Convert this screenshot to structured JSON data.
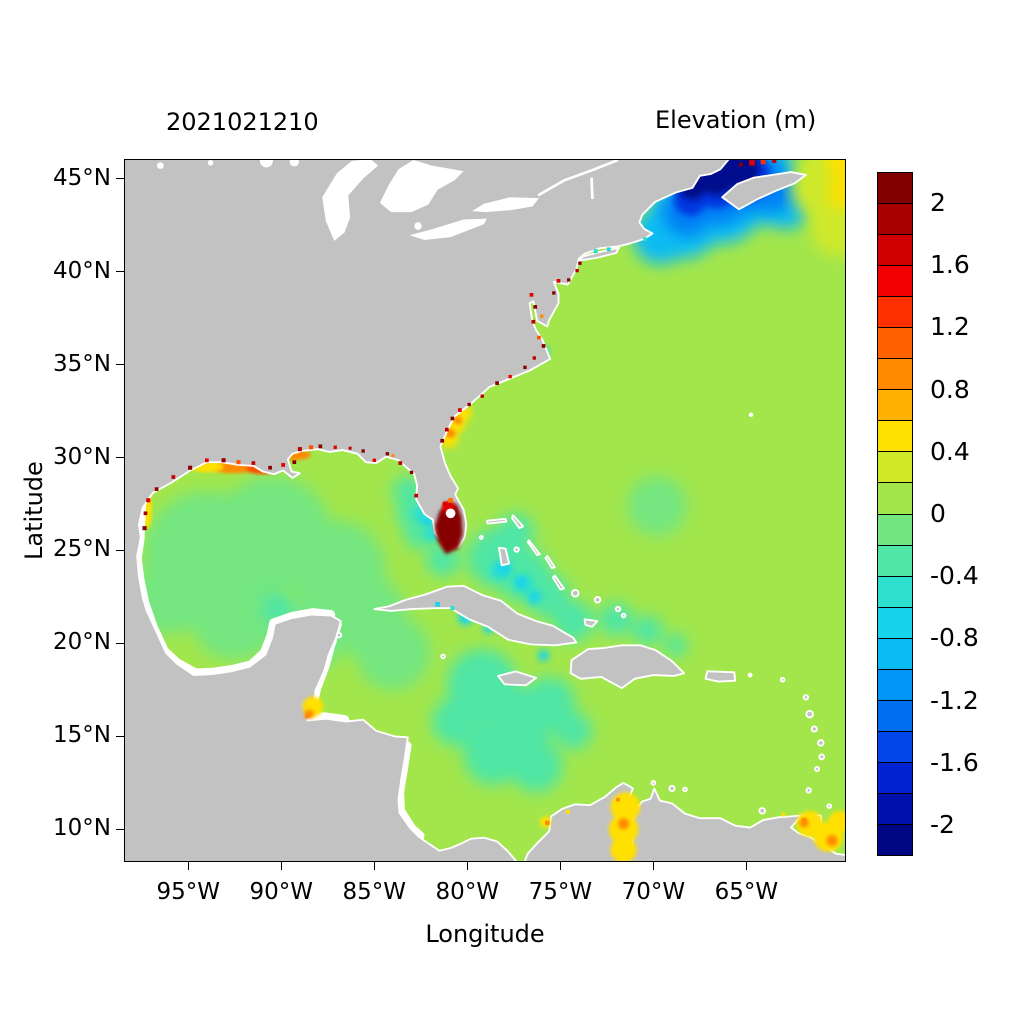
{
  "figure": {
    "timestamp_title": "2021021210",
    "colorbar_title": "Elevation (m)"
  },
  "axes": {
    "x": {
      "label": "Longitude",
      "min": -98.4,
      "max": -59.7,
      "ticks": [
        {
          "value": -95,
          "label": "95°W"
        },
        {
          "value": -90,
          "label": "90°W"
        },
        {
          "value": -85,
          "label": "85°W"
        },
        {
          "value": -80,
          "label": "80°W"
        },
        {
          "value": -75,
          "label": "75°W"
        },
        {
          "value": -70,
          "label": "70°W"
        },
        {
          "value": -65,
          "label": "65°W"
        }
      ]
    },
    "y": {
      "label": "Latitude",
      "min": 8.3,
      "max": 46,
      "ticks": [
        {
          "value": 45,
          "label": "45°N"
        },
        {
          "value": 40,
          "label": "40°N"
        },
        {
          "value": 35,
          "label": "35°N"
        },
        {
          "value": 30,
          "label": "30°N"
        },
        {
          "value": 25,
          "label": "25°N"
        },
        {
          "value": 20,
          "label": "20°N"
        },
        {
          "value": 15,
          "label": "15°N"
        },
        {
          "value": 10,
          "label": "10°N"
        }
      ]
    }
  },
  "colorbar": {
    "min": -2.2,
    "max": 2.2,
    "step": 0.2,
    "tick_values": [
      2,
      1.6,
      1.2,
      0.8,
      0.4,
      0,
      -0.4,
      -0.8,
      -1.2,
      -1.6,
      -2
    ],
    "tick_labels": [
      "2",
      "1.6",
      "1.2",
      "0.8",
      "0.4",
      "0",
      "-0.4",
      "-0.8",
      "-1.2",
      "-1.6",
      "-2"
    ],
    "colors_top_to_bottom": [
      "#800000",
      "#A80000",
      "#D00000",
      "#F00000",
      "#FF3000",
      "#FF6000",
      "#FF8A00",
      "#FFB000",
      "#FFE000",
      "#CFE929",
      "#A2E64C",
      "#74E680",
      "#4FE6A6",
      "#2EDFCE",
      "#17D4EC",
      "#0ABCF2",
      "#0096F5",
      "#006EF0",
      "#0046E8",
      "#0022D0",
      "#0010AC",
      "#000782"
    ]
  },
  "palette": {
    "background": "#FFFFFF",
    "axis": "#000000",
    "land": "#C2C2C2",
    "lake": "#FFFFFF",
    "ocean_base": "#A2E64C",
    "gulf_green": "#74E680",
    "seafoam": "#4FE6A6",
    "turquoise": "#2EDFCE",
    "cyan": "#17D4EC",
    "blue_outer": "#0ABCF2",
    "blue_mid": "#0080F5",
    "blue_deep": "#0038E0",
    "blue_core": "#000A8C",
    "yellow": "#FFE000",
    "yellow_green": "#CFE929",
    "orange": "#FF8A00",
    "orange_red": "#FF5000",
    "red": "#E00000",
    "dark_red": "#870000"
  },
  "map_features": {
    "speckles": [
      [
        -97.35,
        26.2,
        "#8B0000",
        0.22
      ],
      [
        -97.3,
        27.0,
        "#A80000",
        0.2
      ],
      [
        -97.15,
        27.7,
        "#E00000",
        0.22
      ],
      [
        -96.7,
        28.3,
        "#8B0000",
        0.2
      ],
      [
        -95.8,
        28.95,
        "#C00000",
        0.2
      ],
      [
        -94.9,
        29.45,
        "#8B0000",
        0.22
      ],
      [
        -94.0,
        29.85,
        "#E00000",
        0.2
      ],
      [
        -93.1,
        29.85,
        "#8B0000",
        0.22
      ],
      [
        -92.3,
        29.75,
        "#FF5000",
        0.22
      ],
      [
        -91.5,
        29.7,
        "#C00000",
        0.2
      ],
      [
        -90.6,
        29.45,
        "#8B0000",
        0.2
      ],
      [
        -89.9,
        29.6,
        "#E00000",
        0.2
      ],
      [
        -89.3,
        29.75,
        "#8B0000",
        0.2
      ],
      [
        -89.0,
        30.45,
        "#C00000",
        0.22
      ],
      [
        -88.4,
        30.55,
        "#FF5000",
        0.22
      ],
      [
        -87.9,
        30.6,
        "#8B0000",
        0.2
      ],
      [
        -87.1,
        30.55,
        "#E00000",
        0.18
      ],
      [
        -86.3,
        30.5,
        "#C00000",
        0.16
      ],
      [
        -85.6,
        30.35,
        "#8B0000",
        0.18
      ],
      [
        -85.0,
        29.85,
        "#E00000",
        0.18
      ],
      [
        -84.3,
        30.2,
        "#8B0000",
        0.18
      ],
      [
        -84.0,
        30.1,
        "#FF8A00",
        0.16
      ],
      [
        -83.6,
        29.7,
        "#C00000",
        0.2
      ],
      [
        -83.0,
        29.2,
        "#8B0000",
        0.18
      ],
      [
        -82.75,
        27.95,
        "#C00000",
        0.2
      ],
      [
        -81.35,
        30.9,
        "#8B0000",
        0.2
      ],
      [
        -81.1,
        31.5,
        "#C00000",
        0.2
      ],
      [
        -80.8,
        32.1,
        "#8B0000",
        0.2
      ],
      [
        -80.4,
        32.55,
        "#E00000",
        0.2
      ],
      [
        -79.9,
        32.85,
        "#8B0000",
        0.18
      ],
      [
        -79.2,
        33.3,
        "#C00000",
        0.18
      ],
      [
        -78.4,
        34.0,
        "#8B0000",
        0.2
      ],
      [
        -77.7,
        34.35,
        "#E00000",
        0.18
      ],
      [
        -76.9,
        34.85,
        "#8B0000",
        0.18
      ],
      [
        -76.4,
        35.35,
        "#C00000",
        0.18
      ],
      [
        -75.9,
        36.0,
        "#8B0000",
        0.2
      ],
      [
        -76.15,
        36.45,
        "#FF5000",
        0.2
      ],
      [
        -76.45,
        37.3,
        "#C00000",
        0.2
      ],
      [
        -76.35,
        38.1,
        "#8B0000",
        0.2
      ],
      [
        -76.55,
        38.75,
        "#E00000",
        0.2
      ],
      [
        -76.0,
        37.6,
        "#FF8A00",
        0.18
      ],
      [
        -75.35,
        38.85,
        "#8B0000",
        0.18
      ],
      [
        -75.1,
        39.5,
        "#E00000",
        0.2
      ],
      [
        -74.55,
        39.55,
        "#8B0000",
        0.18
      ],
      [
        -74.1,
        40.05,
        "#C00000",
        0.18
      ],
      [
        -73.95,
        40.45,
        "#8B0000",
        0.18
      ],
      [
        -73.1,
        41.1,
        "#2EDFCE",
        0.22
      ],
      [
        -72.4,
        41.2,
        "#17D4EC",
        0.2
      ],
      [
        -70.45,
        41.75,
        "#2EDFCE",
        0.2
      ],
      [
        -64.7,
        45.85,
        "#E00000",
        0.3
      ],
      [
        -64.1,
        45.9,
        "#FF3000",
        0.26
      ],
      [
        -63.5,
        45.95,
        "#C00000",
        0.22
      ],
      [
        -65.3,
        45.75,
        "#8B0000",
        0.2
      ],
      [
        -75.7,
        10.35,
        "#FF8A00",
        0.24
      ],
      [
        -74.6,
        10.95,
        "#FFE000",
        0.22
      ],
      [
        -71.9,
        11.6,
        "#FF8A00",
        0.2
      ],
      [
        -88.6,
        16.1,
        "#FF8A00",
        0.22
      ],
      [
        -61.9,
        10.5,
        "#FF8A00",
        0.22
      ],
      [
        -63.0,
        10.8,
        "#FFE000",
        0.2
      ],
      [
        -80.9,
        27.7,
        "#FF7000",
        0.25
      ],
      [
        -81.2,
        27.5,
        "#E00000",
        0.25
      ],
      [
        -81.6,
        22.1,
        "#17D4EC",
        0.25
      ],
      [
        -80.8,
        21.9,
        "#2EDFCE",
        0.22
      ]
    ]
  },
  "chart_data": {
    "type": "heatmap",
    "title": "Elevation (m)",
    "timestamp": "2021021210",
    "xlabel": "Longitude",
    "ylabel": "Latitude",
    "xlim": [
      -98.4,
      -59.7
    ],
    "ylim": [
      8.3,
      46
    ],
    "grid": false,
    "colorbar": {
      "label": "Elevation (m)",
      "range": [
        -2.2,
        2.2
      ],
      "tick_interval": 0.4,
      "ticks": [
        2,
        1.6,
        1.2,
        0.8,
        0.4,
        0,
        -0.4,
        -0.8,
        -1.2,
        -1.6,
        -2
      ],
      "position": "right"
    },
    "land_mask_color": "gray",
    "regions": [
      {
        "area": "Open Atlantic, most of Gulf of Mexico and eastern Caribbean",
        "approx_elevation_m": 0.1
      },
      {
        "area": "Gulf of Maine / Bay of Fundy / Scotian Shelf (deep blue minimum, NE corner)",
        "approx_elevation_m": -2.0
      },
      {
        "area": "Southern Florida peninsula and adjacent waters (dark red maximum)",
        "approx_elevation_m": 2.2
      },
      {
        "area": "Minas Basin at head of Bay of Fundy (small red specks at top edge)",
        "approx_elevation_m": 1.8
      },
      {
        "area": "Offshore Nova Scotia / northeast corner of domain (yellow)",
        "approx_elevation_m": 0.35
      },
      {
        "area": "Texas-Louisiana-Mississippi coastal strip (yellow/orange/red)",
        "approx_elevation_m": 0.9
      },
      {
        "area": "Georgia / South Carolina nearshore (yellow-orange band)",
        "approx_elevation_m": 0.5
      },
      {
        "area": "Estuary speckles along US East and Gulf coasts (dark red)",
        "approx_elevation_m": 2.0
      },
      {
        "area": "West Florida shelf, Bahama banks, central Caribbean (aquamarine)",
        "approx_elevation_m": -0.3
      },
      {
        "area": "Scattered bank spots near Bahamas and south of Cuba (cyan)",
        "approx_elevation_m": -0.7
      },
      {
        "area": "Gulf of Venezuela / Lake Maracaibo (yellow with orange core)",
        "approx_elevation_m": 0.6
      },
      {
        "area": "Gulf of Paria / Trinidad (yellow-orange)",
        "approx_elevation_m": 0.6
      },
      {
        "area": "Gulf of Honduras (yellow)",
        "approx_elevation_m": 0.45
      }
    ]
  }
}
